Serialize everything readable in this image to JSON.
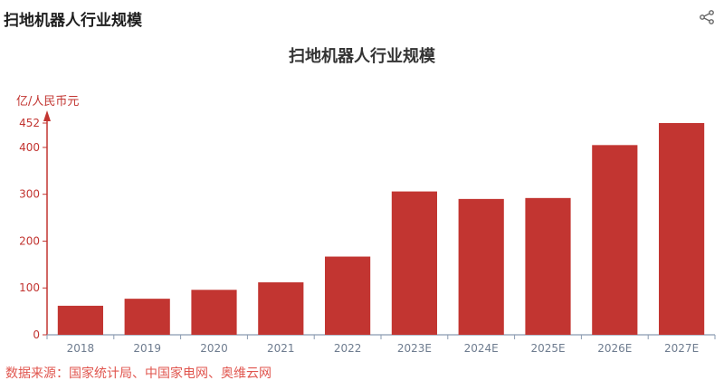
{
  "header": {
    "title": "扫地机器人行业规模",
    "share_icon": "share-icon"
  },
  "chart_data": {
    "type": "bar",
    "title": "扫地机器人行业规模",
    "ylabel": "亿/人民币元",
    "categories": [
      "2018",
      "2019",
      "2020",
      "2021",
      "2022",
      "2023E",
      "2024E",
      "2025E",
      "2026E",
      "2027E"
    ],
    "values": [
      62,
      77,
      96,
      112,
      167,
      306,
      290,
      292,
      405,
      452
    ],
    "ylim": [
      0,
      452
    ],
    "yticks": [
      0,
      100,
      200,
      300,
      400,
      452
    ],
    "bar_color": "#c23531",
    "axis_color": "#c23531",
    "grid": false,
    "legend": "none"
  },
  "footer": {
    "source": "数据来源：国家统计局、中国家电网、奥维云网"
  }
}
